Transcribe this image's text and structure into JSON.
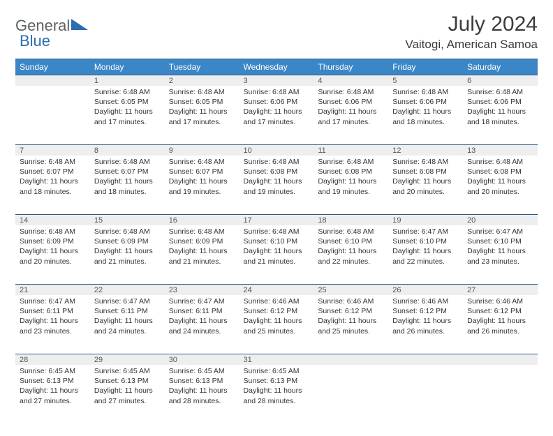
{
  "brand": {
    "part1": "General",
    "part2": "Blue",
    "logo_color": "#2a6db3",
    "text_color": "#5d6163"
  },
  "title": "July 2024",
  "location": "Vaitogi, American Samoa",
  "colors": {
    "header_bg": "#3b86c7",
    "header_text": "#ffffff",
    "border": "#2a5d8a",
    "daynum_bg": "#eeeeee",
    "daynum_text": "#555555",
    "body_text": "#333333",
    "background": "#ffffff"
  },
  "weekdays": [
    "Sunday",
    "Monday",
    "Tuesday",
    "Wednesday",
    "Thursday",
    "Friday",
    "Saturday"
  ],
  "weeks": [
    [
      null,
      {
        "n": "1",
        "sr": "6:48 AM",
        "ss": "6:05 PM",
        "dl": "11 hours and 17 minutes."
      },
      {
        "n": "2",
        "sr": "6:48 AM",
        "ss": "6:05 PM",
        "dl": "11 hours and 17 minutes."
      },
      {
        "n": "3",
        "sr": "6:48 AM",
        "ss": "6:06 PM",
        "dl": "11 hours and 17 minutes."
      },
      {
        "n": "4",
        "sr": "6:48 AM",
        "ss": "6:06 PM",
        "dl": "11 hours and 17 minutes."
      },
      {
        "n": "5",
        "sr": "6:48 AM",
        "ss": "6:06 PM",
        "dl": "11 hours and 18 minutes."
      },
      {
        "n": "6",
        "sr": "6:48 AM",
        "ss": "6:06 PM",
        "dl": "11 hours and 18 minutes."
      }
    ],
    [
      {
        "n": "7",
        "sr": "6:48 AM",
        "ss": "6:07 PM",
        "dl": "11 hours and 18 minutes."
      },
      {
        "n": "8",
        "sr": "6:48 AM",
        "ss": "6:07 PM",
        "dl": "11 hours and 18 minutes."
      },
      {
        "n": "9",
        "sr": "6:48 AM",
        "ss": "6:07 PM",
        "dl": "11 hours and 19 minutes."
      },
      {
        "n": "10",
        "sr": "6:48 AM",
        "ss": "6:08 PM",
        "dl": "11 hours and 19 minutes."
      },
      {
        "n": "11",
        "sr": "6:48 AM",
        "ss": "6:08 PM",
        "dl": "11 hours and 19 minutes."
      },
      {
        "n": "12",
        "sr": "6:48 AM",
        "ss": "6:08 PM",
        "dl": "11 hours and 20 minutes."
      },
      {
        "n": "13",
        "sr": "6:48 AM",
        "ss": "6:08 PM",
        "dl": "11 hours and 20 minutes."
      }
    ],
    [
      {
        "n": "14",
        "sr": "6:48 AM",
        "ss": "6:09 PM",
        "dl": "11 hours and 20 minutes."
      },
      {
        "n": "15",
        "sr": "6:48 AM",
        "ss": "6:09 PM",
        "dl": "11 hours and 21 minutes."
      },
      {
        "n": "16",
        "sr": "6:48 AM",
        "ss": "6:09 PM",
        "dl": "11 hours and 21 minutes."
      },
      {
        "n": "17",
        "sr": "6:48 AM",
        "ss": "6:10 PM",
        "dl": "11 hours and 21 minutes."
      },
      {
        "n": "18",
        "sr": "6:48 AM",
        "ss": "6:10 PM",
        "dl": "11 hours and 22 minutes."
      },
      {
        "n": "19",
        "sr": "6:47 AM",
        "ss": "6:10 PM",
        "dl": "11 hours and 22 minutes."
      },
      {
        "n": "20",
        "sr": "6:47 AM",
        "ss": "6:10 PM",
        "dl": "11 hours and 23 minutes."
      }
    ],
    [
      {
        "n": "21",
        "sr": "6:47 AM",
        "ss": "6:11 PM",
        "dl": "11 hours and 23 minutes."
      },
      {
        "n": "22",
        "sr": "6:47 AM",
        "ss": "6:11 PM",
        "dl": "11 hours and 24 minutes."
      },
      {
        "n": "23",
        "sr": "6:47 AM",
        "ss": "6:11 PM",
        "dl": "11 hours and 24 minutes."
      },
      {
        "n": "24",
        "sr": "6:46 AM",
        "ss": "6:12 PM",
        "dl": "11 hours and 25 minutes."
      },
      {
        "n": "25",
        "sr": "6:46 AM",
        "ss": "6:12 PM",
        "dl": "11 hours and 25 minutes."
      },
      {
        "n": "26",
        "sr": "6:46 AM",
        "ss": "6:12 PM",
        "dl": "11 hours and 26 minutes."
      },
      {
        "n": "27",
        "sr": "6:46 AM",
        "ss": "6:12 PM",
        "dl": "11 hours and 26 minutes."
      }
    ],
    [
      {
        "n": "28",
        "sr": "6:45 AM",
        "ss": "6:13 PM",
        "dl": "11 hours and 27 minutes."
      },
      {
        "n": "29",
        "sr": "6:45 AM",
        "ss": "6:13 PM",
        "dl": "11 hours and 27 minutes."
      },
      {
        "n": "30",
        "sr": "6:45 AM",
        "ss": "6:13 PM",
        "dl": "11 hours and 28 minutes."
      },
      {
        "n": "31",
        "sr": "6:45 AM",
        "ss": "6:13 PM",
        "dl": "11 hours and 28 minutes."
      },
      null,
      null,
      null
    ]
  ],
  "labels": {
    "sunrise": "Sunrise:",
    "sunset": "Sunset:",
    "daylight": "Daylight:"
  }
}
